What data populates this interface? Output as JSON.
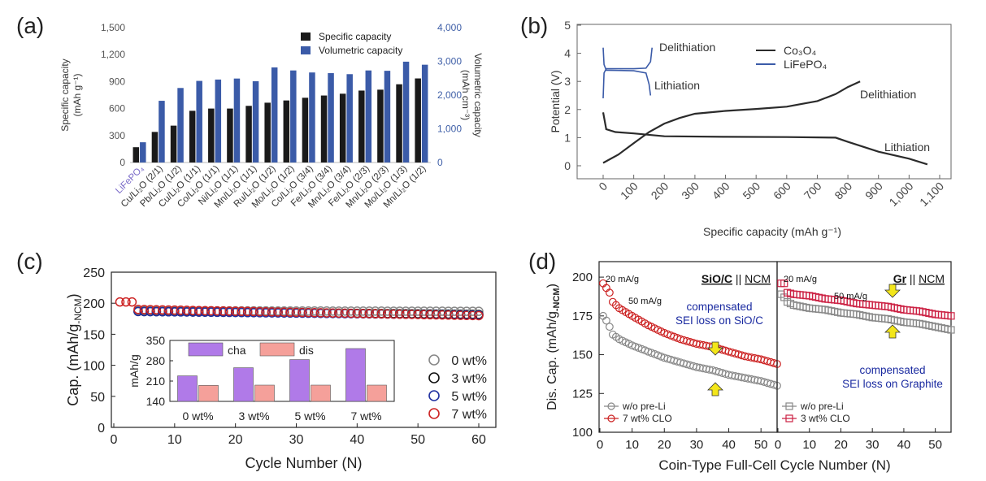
{
  "panels": [
    {
      "label": "(a)"
    },
    {
      "label": "(b)"
    },
    {
      "label": "(c)"
    },
    {
      "label": "(d)"
    }
  ],
  "chart_data": [
    {
      "panel": "(a)",
      "type": "bar",
      "categories": [
        "LiFePO₄",
        "Cu/Li₂O (2/1)",
        "Pb/Li₂O (1/2)",
        "Cu/Li₂O (1/1)",
        "Co/Li₂O (1/1)",
        "Ni/Li₂O (1/1)",
        "Mn/Li₂O (1/1)",
        "Ru/Li₂O (1/2)",
        "Mo/Li₂O (1/2)",
        "Co/Li₂O (3/4)",
        "Fe/Li₂O (3/4)",
        "Mn/Li₂O (3/4)",
        "Fe/Li₂O (2/3)",
        "Mn/Li₂O (2/3)",
        "Mo/Li₂O (1/3)",
        "Mn/Li₂O (1/2)"
      ],
      "series": [
        {
          "name": "Specific capacity",
          "axis": "left",
          "color": "#1a1a1a",
          "values": [
            170,
            340,
            410,
            575,
            600,
            600,
            630,
            665,
            690,
            720,
            745,
            765,
            800,
            810,
            870,
            935
          ]
        },
        {
          "name": "Volumetric capacity",
          "axis": "right",
          "color": "#3b5ba8",
          "values": [
            600,
            1830,
            2210,
            2420,
            2460,
            2490,
            2410,
            2820,
            2730,
            2670,
            2650,
            2620,
            2730,
            2720,
            2990,
            2900
          ]
        }
      ],
      "ylabel": "Specific capacity (mAh g⁻¹)",
      "y2label": "Volumetric capacity (mAh cm⁻³)",
      "ylim": [
        0,
        1500
      ],
      "y2lim": [
        0,
        4000
      ],
      "yticks": [
        "0",
        "300",
        "600",
        "900",
        "1,200",
        "1,500"
      ],
      "y2ticks": [
        "0",
        "1,000",
        "2,000",
        "3,000",
        "4,000"
      ],
      "legend": "top-right"
    },
    {
      "panel": "(b)",
      "type": "line",
      "xlabel": "Specific capacity (mAh g⁻¹)",
      "ylabel": "Potential (V)",
      "xlim": [
        0,
        1100
      ],
      "ylim": [
        0,
        5
      ],
      "xticks": [
        "0",
        "100",
        "200",
        "300",
        "400",
        "500",
        "600",
        "700",
        "800",
        "900",
        "1,000",
        "1,100"
      ],
      "yticks": [
        "0",
        "1",
        "2",
        "3",
        "4",
        "5"
      ],
      "series": [
        {
          "name": "Co₃O₄",
          "color": "#2b2b2b",
          "branches": [
            {
              "label": "Delithiation",
              "points": [
                [
                  0,
                  0.1
                ],
                [
                  50,
                  0.4
                ],
                [
                  100,
                  0.8
                ],
                [
                  150,
                  1.2
                ],
                [
                  200,
                  1.5
                ],
                [
                  250,
                  1.7
                ],
                [
                  300,
                  1.85
                ],
                [
                  400,
                  1.95
                ],
                [
                  500,
                  2.02
                ],
                [
                  600,
                  2.1
                ],
                [
                  700,
                  2.3
                ],
                [
                  760,
                  2.55
                ],
                [
                  800,
                  2.8
                ],
                [
                  840,
                  3.0
                ]
              ]
            },
            {
              "label": "Lithiation",
              "points": [
                [
                  0,
                  1.9
                ],
                [
                  10,
                  1.3
                ],
                [
                  40,
                  1.2
                ],
                [
                  100,
                  1.15
                ],
                [
                  200,
                  1.05
                ],
                [
                  400,
                  1.03
                ],
                [
                  600,
                  1.02
                ],
                [
                  760,
                  1.0
                ],
                [
                  800,
                  0.85
                ],
                [
                  900,
                  0.5
                ],
                [
                  1000,
                  0.25
                ],
                [
                  1060,
                  0.05
                ]
              ]
            }
          ]
        },
        {
          "name": "LiFePO₄",
          "color": "#3b5ba8",
          "branches": [
            {
              "label": "Delithiation",
              "points": [
                [
                  0,
                  2.4
                ],
                [
                  3,
                  3.3
                ],
                [
                  10,
                  3.45
                ],
                [
                  100,
                  3.45
                ],
                [
                  140,
                  3.47
                ],
                [
                  155,
                  3.7
                ],
                [
                  160,
                  4.2
                ]
              ]
            },
            {
              "label": "Lithiation",
              "points": [
                [
                  0,
                  4.2
                ],
                [
                  3,
                  3.6
                ],
                [
                  10,
                  3.4
                ],
                [
                  100,
                  3.38
                ],
                [
                  140,
                  3.3
                ],
                [
                  150,
                  2.9
                ],
                [
                  155,
                  2.5
                ]
              ]
            }
          ]
        }
      ],
      "annotations": [
        "Delithiation",
        "Lithiation",
        "Delithiation",
        "Lithiation"
      ],
      "legend": "top-center"
    },
    {
      "panel": "(c)",
      "type": "scatter",
      "xlabel": "Cycle Number (N)",
      "ylabel": "Cap. (mAh/g-NCM)",
      "ylabel_main": "Cap. (mAh/g",
      "ylabel_sub": "-NCM",
      "ylabel_close": ")",
      "xlim": [
        0,
        60
      ],
      "ylim": [
        0,
        250
      ],
      "xticks": [
        "0",
        "10",
        "20",
        "30",
        "40",
        "50",
        "60"
      ],
      "yticks": [
        "0",
        "50",
        "100",
        "150",
        "200",
        "250"
      ],
      "series": [
        {
          "name": "0 wt%",
          "color": "#888888",
          "first": 188,
          "last": 187
        },
        {
          "name": "3 wt%",
          "color": "#111111",
          "first": 187,
          "last": 182
        },
        {
          "name": "5 wt%",
          "color": "#2030a0",
          "first": 187,
          "last": 181
        },
        {
          "name": "7 wt%",
          "color": "#cc2222",
          "first": 202,
          "last": 180
        }
      ],
      "legend": "right",
      "inset": {
        "type": "bar",
        "ylabel": "mAh/g",
        "ylim": [
          140,
          350
        ],
        "yticks": [
          "140",
          "210",
          "280",
          "350"
        ],
        "categories": [
          "0 wt%",
          "3 wt%",
          "5 wt%",
          "7 wt%"
        ],
        "series": [
          {
            "name": "cha",
            "color": "#b07ae8",
            "values": [
              228,
              256,
              284,
              322
            ]
          },
          {
            "name": "dis",
            "color": "#f5a09a",
            "values": [
              195,
              196,
              196,
              196
            ]
          }
        ]
      }
    },
    {
      "panel": "(d)",
      "type": "scatter",
      "xlabel": "Coin-Type Full-Cell Cycle Number (N)",
      "ylabel": "Dis. Cap. (mAh/g-NCM)",
      "ylabel_main": "Dis. Cap. (mAh/g",
      "ylabel_sub": "-NCM",
      "ylabel_close": ")",
      "ylim": [
        100,
        210
      ],
      "yticks": [
        "100",
        "125",
        "150",
        "175",
        "200"
      ],
      "subplots": [
        {
          "title_a": "SiO/C",
          "title_sep": " || ",
          "title_b": "NCM",
          "xlim": [
            0,
            55
          ],
          "xticks": [
            "0",
            "10",
            "20",
            "30",
            "40",
            "50"
          ],
          "rate1": "20 mA/g",
          "rate2": "50 mA/g",
          "note_lines": [
            "compensated",
            "SEI loss on SiO/C"
          ],
          "series": [
            {
              "name": "w/o pre-Li",
              "color": "#888888",
              "marker": "circle",
              "points": [
                [
                  1,
                  175
                ],
                [
                  2,
                  172
                ],
                [
                  3,
                  168
                ],
                [
                  4,
                  163
                ],
                [
                  6,
                  160
                ],
                [
                  10,
                  156
                ],
                [
                  15,
                  152
                ],
                [
                  20,
                  148
                ],
                [
                  25,
                  145
                ],
                [
                  30,
                  142
                ],
                [
                  35,
                  140
                ],
                [
                  40,
                  137
                ],
                [
                  45,
                  135
                ],
                [
                  50,
                  133
                ],
                [
                  55,
                  130
                ]
              ]
            },
            {
              "name": "7 wt% CLO",
              "color": "#cc2222",
              "marker": "circle",
              "points": [
                [
                  1,
                  196
                ],
                [
                  2,
                  193
                ],
                [
                  3,
                  190
                ],
                [
                  4,
                  184
                ],
                [
                  6,
                  180
                ],
                [
                  10,
                  175
                ],
                [
                  15,
                  169
                ],
                [
                  20,
                  164
                ],
                [
                  25,
                  160
                ],
                [
                  30,
                  157
                ],
                [
                  35,
                  155
                ],
                [
                  40,
                  152
                ],
                [
                  45,
                  149
                ],
                [
                  50,
                  147
                ],
                [
                  55,
                  144
                ]
              ]
            }
          ]
        },
        {
          "title_a": "Gr",
          "title_sep": " || ",
          "title_b": "NCM",
          "xlim": [
            0,
            55
          ],
          "xticks": [
            "0",
            "10",
            "20",
            "30",
            "40",
            "50"
          ],
          "rate1": "20 mA/g",
          "rate2": "50 mA/g",
          "note_lines": [
            "compensated",
            "SEI loss on Graphite"
          ],
          "series": [
            {
              "name": "w/o pre-Li",
              "color": "#888888",
              "marker": "square",
              "points": [
                [
                  1,
                  189
                ],
                [
                  2,
                  187
                ],
                [
                  3,
                  184
                ],
                [
                  5,
                  182
                ],
                [
                  10,
                  180
                ],
                [
                  15,
                  179
                ],
                [
                  20,
                  177
                ],
                [
                  25,
                  176
                ],
                [
                  30,
                  174
                ],
                [
                  35,
                  173
                ],
                [
                  40,
                  171
                ],
                [
                  45,
                  170
                ],
                [
                  50,
                  168
                ],
                [
                  55,
                  166
                ]
              ]
            },
            {
              "name": "3 wt% CLO",
              "color": "#cc2244",
              "marker": "square",
              "points": [
                [
                  1,
                  196
                ],
                [
                  2,
                  196
                ],
                [
                  3,
                  190
                ],
                [
                  5,
                  189
                ],
                [
                  10,
                  188
                ],
                [
                  15,
                  186
                ],
                [
                  20,
                  185
                ],
                [
                  25,
                  183
                ],
                [
                  30,
                  182
                ],
                [
                  35,
                  181
                ],
                [
                  40,
                  179
                ],
                [
                  45,
                  178
                ],
                [
                  50,
                  176
                ],
                [
                  55,
                  175
                ]
              ]
            }
          ]
        }
      ]
    }
  ]
}
